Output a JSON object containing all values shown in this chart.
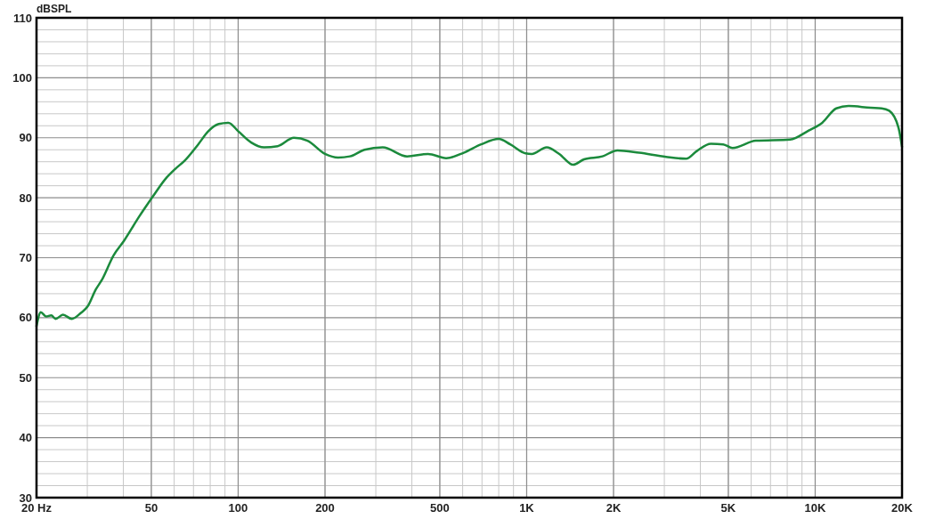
{
  "chart_data": {
    "type": "line",
    "ylabel": "dBSPL",
    "log": "x",
    "grid": true,
    "xlim": [
      20,
      20000
    ],
    "ylim": [
      30,
      110
    ],
    "xticks": [
      {
        "value": 20,
        "label": "20 Hz"
      },
      50,
      100,
      200,
      500,
      {
        "value": 1000,
        "label": "1K"
      },
      {
        "value": 2000,
        "label": "2K"
      },
      {
        "value": 5000,
        "label": "5K"
      },
      {
        "value": 10000,
        "label": "10K"
      },
      {
        "value": 20000,
        "label": "20K"
      }
    ],
    "yticks": [
      30,
      40,
      50,
      60,
      70,
      80,
      90,
      100,
      110
    ],
    "series": [
      {
        "color": "#1b8a3c",
        "x": [
          20,
          20.7,
          21.6,
          22.5,
          23.3,
          24.7,
          26.5,
          28.5,
          30.1,
          32.1,
          33.7,
          37,
          40.3,
          45.3,
          50.6,
          56.1,
          60.5,
          65.3,
          72.7,
          78.8,
          85.6,
          92.6,
          100,
          111,
          123,
          137,
          156,
          174,
          200,
          222,
          244,
          274,
          317,
          385,
          455,
          526,
          605,
          695,
          800,
          877,
          991,
          1041,
          1173,
          1297,
          1449,
          1580,
          1831,
          2064,
          2453,
          3044,
          3571,
          3891,
          4351,
          4801,
          5170,
          6228,
          8186,
          9497,
          10577,
          11830,
          13057,
          15560,
          16990,
          18050,
          19440,
          20000
        ],
        "values": [
          58.6,
          60.9,
          60.2,
          60.4,
          59.8,
          60.5,
          59.8,
          60.8,
          61.9,
          64.7,
          66.3,
          70.4,
          72.9,
          76.8,
          80.2,
          83.2,
          84.8,
          86.2,
          88.9,
          91.1,
          92.3,
          92.5,
          91.1,
          89.2,
          88.4,
          88.6,
          90.0,
          89.5,
          87.3,
          86.7,
          86.9,
          88.0,
          88.4,
          86.9,
          87.3,
          86.6,
          87.5,
          88.9,
          89.8,
          88.9,
          87.4,
          87.3,
          88.4,
          87.3,
          85.5,
          86.4,
          86.9,
          87.9,
          87.5,
          86.8,
          86.5,
          87.8,
          89.0,
          88.9,
          88.3,
          89.5,
          89.7,
          91.2,
          92.5,
          94.9,
          95.3,
          95.0,
          94.9,
          94.5,
          91.7,
          88.5
        ]
      }
    ]
  }
}
